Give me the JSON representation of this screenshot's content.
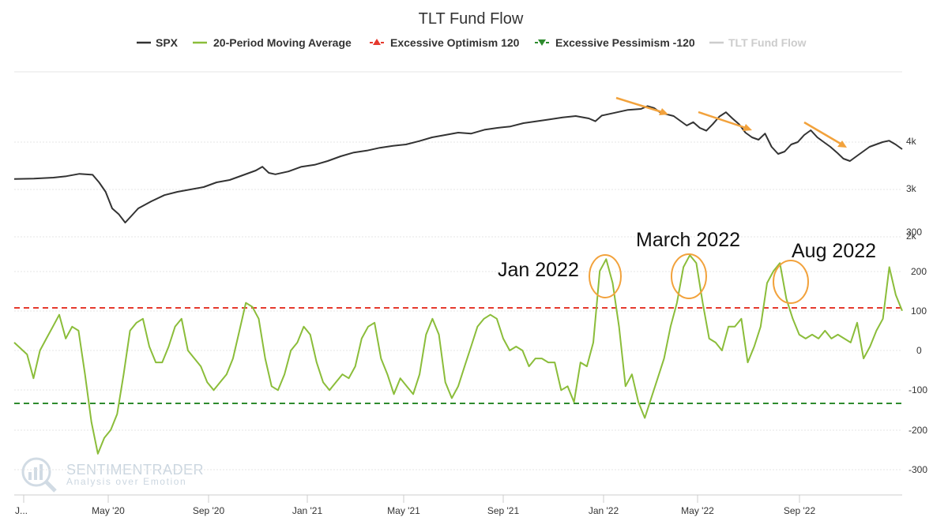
{
  "chart_data": {
    "type": "line",
    "title": "TLT Fund Flow",
    "legend": [
      {
        "name": "SPX",
        "color": "#333333",
        "marker": "line"
      },
      {
        "name": "20-Period Moving Average",
        "color": "#8bbd3a",
        "marker": "line"
      },
      {
        "name": "Excessive Optimism 120",
        "color": "#e53a2e",
        "marker": "triangle-up"
      },
      {
        "name": "Excessive Pessimism -120",
        "color": "#2e8b2e",
        "marker": "triangle-down"
      },
      {
        "name": "TLT Fund Flow",
        "color": "#cccccc",
        "marker": "line"
      }
    ],
    "x_ticks": [
      "J...",
      "May '20",
      "Sep '20",
      "Jan '21",
      "May '21",
      "Sep '21",
      "Jan '22",
      "May '22",
      "Sep '22"
    ],
    "spx_axis": {
      "ticks": [
        "4k",
        "3k",
        "2k"
      ],
      "values": [
        4000,
        3000,
        2000
      ],
      "range": [
        1500,
        5000
      ]
    },
    "flow_axis": {
      "ticks": [
        "300",
        "200",
        "100",
        "0",
        "-100",
        "-200",
        "-300"
      ],
      "values": [
        300,
        200,
        100,
        0,
        -100,
        -200,
        -300
      ],
      "range": [
        -350,
        300
      ]
    },
    "thresholds": {
      "optimism": 120,
      "pessimism": -120
    },
    "series": [
      {
        "name": "SPX",
        "color": "#333333",
        "points": [
          [
            0,
            3220
          ],
          [
            3,
            3230
          ],
          [
            6,
            3250
          ],
          [
            8,
            3280
          ],
          [
            10,
            3330
          ],
          [
            12,
            3310
          ],
          [
            13,
            3150
          ],
          [
            14,
            2950
          ],
          [
            15,
            2600
          ],
          [
            16,
            2480
          ],
          [
            17,
            2300
          ],
          [
            18,
            2450
          ],
          [
            19,
            2600
          ],
          [
            21,
            2750
          ],
          [
            23,
            2880
          ],
          [
            25,
            2950
          ],
          [
            27,
            3000
          ],
          [
            29,
            3050
          ],
          [
            31,
            3150
          ],
          [
            33,
            3200
          ],
          [
            35,
            3300
          ],
          [
            37,
            3400
          ],
          [
            38,
            3480
          ],
          [
            39,
            3350
          ],
          [
            40,
            3320
          ],
          [
            42,
            3380
          ],
          [
            44,
            3480
          ],
          [
            46,
            3520
          ],
          [
            48,
            3600
          ],
          [
            50,
            3700
          ],
          [
            52,
            3780
          ],
          [
            54,
            3820
          ],
          [
            56,
            3880
          ],
          [
            58,
            3920
          ],
          [
            60,
            3950
          ],
          [
            62,
            4020
          ],
          [
            64,
            4100
          ],
          [
            66,
            4150
          ],
          [
            68,
            4200
          ],
          [
            70,
            4180
          ],
          [
            72,
            4260
          ],
          [
            74,
            4300
          ],
          [
            76,
            4330
          ],
          [
            78,
            4400
          ],
          [
            80,
            4440
          ],
          [
            82,
            4480
          ],
          [
            84,
            4520
          ],
          [
            86,
            4550
          ],
          [
            88,
            4500
          ],
          [
            89,
            4440
          ],
          [
            90,
            4560
          ],
          [
            92,
            4620
          ],
          [
            94,
            4680
          ],
          [
            96,
            4700
          ],
          [
            97,
            4760
          ],
          [
            98,
            4720
          ],
          [
            99,
            4620
          ],
          [
            101,
            4550
          ],
          [
            102,
            4450
          ],
          [
            103,
            4350
          ],
          [
            104,
            4420
          ],
          [
            105,
            4300
          ],
          [
            106,
            4240
          ],
          [
            107,
            4380
          ],
          [
            108,
            4540
          ],
          [
            109,
            4630
          ],
          [
            110,
            4500
          ],
          [
            111,
            4380
          ],
          [
            112,
            4200
          ],
          [
            113,
            4100
          ],
          [
            114,
            4050
          ],
          [
            115,
            4180
          ],
          [
            116,
            3900
          ],
          [
            117,
            3750
          ],
          [
            118,
            3800
          ],
          [
            119,
            3950
          ],
          [
            120,
            4000
          ],
          [
            121,
            4150
          ],
          [
            122,
            4250
          ],
          [
            123,
            4100
          ],
          [
            124,
            4000
          ],
          [
            125,
            3900
          ],
          [
            126,
            3780
          ],
          [
            127,
            3650
          ],
          [
            128,
            3600
          ],
          [
            129,
            3700
          ],
          [
            130,
            3800
          ],
          [
            131,
            3900
          ],
          [
            132,
            3950
          ],
          [
            133,
            4000
          ],
          [
            134,
            4030
          ],
          [
            135,
            3950
          ],
          [
            136,
            3850
          ]
        ]
      },
      {
        "name": "20-Period Moving Average",
        "color": "#8bbd3a",
        "points": [
          [
            0,
            20
          ],
          [
            2,
            -10
          ],
          [
            3,
            -70
          ],
          [
            4,
            0
          ],
          [
            5,
            30
          ],
          [
            6,
            60
          ],
          [
            7,
            90
          ],
          [
            8,
            30
          ],
          [
            9,
            60
          ],
          [
            10,
            50
          ],
          [
            11,
            -60
          ],
          [
            12,
            -180
          ],
          [
            13,
            -260
          ],
          [
            14,
            -220
          ],
          [
            15,
            -200
          ],
          [
            16,
            -160
          ],
          [
            17,
            -60
          ],
          [
            18,
            50
          ],
          [
            19,
            70
          ],
          [
            20,
            80
          ],
          [
            21,
            10
          ],
          [
            22,
            -30
          ],
          [
            23,
            -30
          ],
          [
            24,
            10
          ],
          [
            25,
            60
          ],
          [
            26,
            80
          ],
          [
            27,
            0
          ],
          [
            28,
            -20
          ],
          [
            29,
            -40
          ],
          [
            30,
            -80
          ],
          [
            31,
            -100
          ],
          [
            32,
            -80
          ],
          [
            33,
            -60
          ],
          [
            34,
            -20
          ],
          [
            35,
            50
          ],
          [
            36,
            120
          ],
          [
            37,
            110
          ],
          [
            38,
            80
          ],
          [
            39,
            -20
          ],
          [
            40,
            -90
          ],
          [
            41,
            -100
          ],
          [
            42,
            -60
          ],
          [
            43,
            0
          ],
          [
            44,
            20
          ],
          [
            45,
            60
          ],
          [
            46,
            40
          ],
          [
            47,
            -30
          ],
          [
            48,
            -80
          ],
          [
            49,
            -100
          ],
          [
            50,
            -80
          ],
          [
            51,
            -60
          ],
          [
            52,
            -70
          ],
          [
            53,
            -40
          ],
          [
            54,
            30
          ],
          [
            55,
            60
          ],
          [
            56,
            70
          ],
          [
            57,
            -20
          ],
          [
            58,
            -60
          ],
          [
            59,
            -110
          ],
          [
            60,
            -70
          ],
          [
            61,
            -90
          ],
          [
            62,
            -110
          ],
          [
            63,
            -60
          ],
          [
            64,
            40
          ],
          [
            65,
            80
          ],
          [
            66,
            40
          ],
          [
            67,
            -80
          ],
          [
            68,
            -120
          ],
          [
            69,
            -90
          ],
          [
            70,
            -40
          ],
          [
            71,
            10
          ],
          [
            72,
            60
          ],
          [
            73,
            80
          ],
          [
            74,
            90
          ],
          [
            75,
            80
          ],
          [
            76,
            30
          ],
          [
            77,
            0
          ],
          [
            78,
            10
          ],
          [
            79,
            0
          ],
          [
            80,
            -40
          ],
          [
            81,
            -20
          ],
          [
            82,
            -20
          ],
          [
            83,
            -30
          ],
          [
            84,
            -30
          ],
          [
            85,
            -100
          ],
          [
            86,
            -90
          ],
          [
            87,
            -130
          ],
          [
            88,
            -30
          ],
          [
            89,
            -40
          ],
          [
            90,
            20
          ],
          [
            91,
            200
          ],
          [
            92,
            230
          ],
          [
            93,
            170
          ],
          [
            94,
            60
          ],
          [
            95,
            -90
          ],
          [
            96,
            -60
          ],
          [
            97,
            -130
          ],
          [
            98,
            -170
          ],
          [
            99,
            -120
          ],
          [
            100,
            -70
          ],
          [
            101,
            -20
          ],
          [
            102,
            60
          ],
          [
            103,
            120
          ],
          [
            104,
            210
          ],
          [
            105,
            240
          ],
          [
            106,
            220
          ],
          [
            107,
            120
          ],
          [
            108,
            30
          ],
          [
            109,
            20
          ],
          [
            110,
            0
          ],
          [
            111,
            60
          ],
          [
            112,
            60
          ],
          [
            113,
            80
          ],
          [
            114,
            -30
          ],
          [
            115,
            10
          ],
          [
            116,
            60
          ],
          [
            117,
            170
          ],
          [
            118,
            200
          ],
          [
            119,
            220
          ],
          [
            120,
            130
          ],
          [
            121,
            80
          ],
          [
            122,
            40
          ],
          [
            123,
            30
          ],
          [
            124,
            40
          ],
          [
            125,
            30
          ],
          [
            126,
            50
          ],
          [
            127,
            30
          ],
          [
            128,
            40
          ],
          [
            129,
            30
          ],
          [
            130,
            20
          ],
          [
            131,
            70
          ],
          [
            132,
            -20
          ],
          [
            133,
            10
          ],
          [
            134,
            50
          ],
          [
            135,
            80
          ],
          [
            136,
            210
          ],
          [
            137,
            140
          ],
          [
            138,
            100
          ]
        ]
      }
    ],
    "annotations": [
      {
        "label": "Jan 2022"
      },
      {
        "label": "March 2022"
      },
      {
        "label": "Aug 2022"
      }
    ],
    "watermark": {
      "name": "SENTIMENTRADER",
      "tagline": "Analysis over Emotion"
    }
  }
}
